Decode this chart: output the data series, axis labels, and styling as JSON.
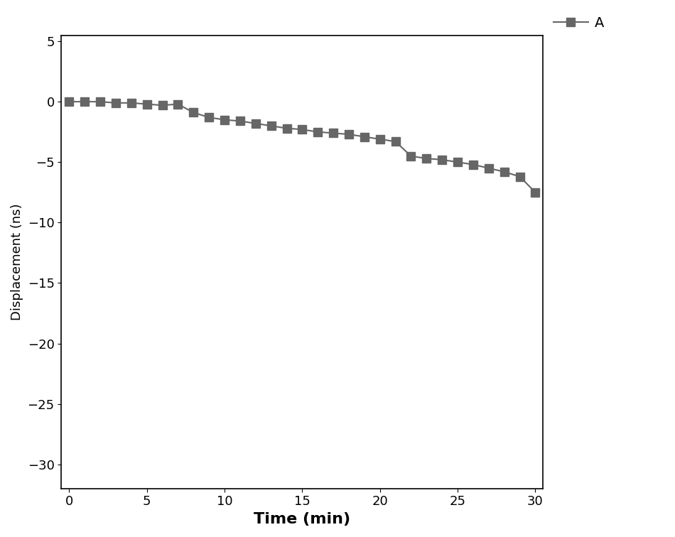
{
  "x": [
    0,
    1,
    2,
    3,
    4,
    5,
    6,
    7,
    8,
    9,
    10,
    11,
    12,
    13,
    14,
    15,
    16,
    17,
    18,
    19,
    20,
    21,
    22,
    23,
    24,
    25,
    26,
    27,
    28,
    29,
    30
  ],
  "y": [
    0.0,
    0.0,
    0.0,
    -0.1,
    -0.1,
    -0.2,
    -0.3,
    -0.2,
    -0.9,
    -1.3,
    -1.5,
    -1.6,
    -1.8,
    -2.0,
    -2.2,
    -2.3,
    -2.5,
    -2.6,
    -2.7,
    -2.9,
    -3.1,
    -3.3,
    -4.5,
    -4.7,
    -4.8,
    -5.0,
    -5.2,
    -5.5,
    -5.8,
    -6.2,
    -7.5
  ],
  "color": "#666666",
  "marker": "s",
  "markersize": 9,
  "linewidth": 1.5,
  "xlabel": "Time (min)",
  "ylabel": "Displacement (ns)",
  "xlim": [
    -0.5,
    30.5
  ],
  "ylim": [
    -32,
    5.5
  ],
  "xticks": [
    0,
    5,
    10,
    15,
    20,
    25,
    30
  ],
  "yticks": [
    5,
    0,
    -5,
    -10,
    -15,
    -20,
    -25,
    -30
  ],
  "legend_label": "A",
  "xlabel_fontsize": 16,
  "ylabel_fontsize": 13,
  "tick_fontsize": 13,
  "legend_fontsize": 14,
  "fig_width": 9.5,
  "fig_height": 7.56
}
